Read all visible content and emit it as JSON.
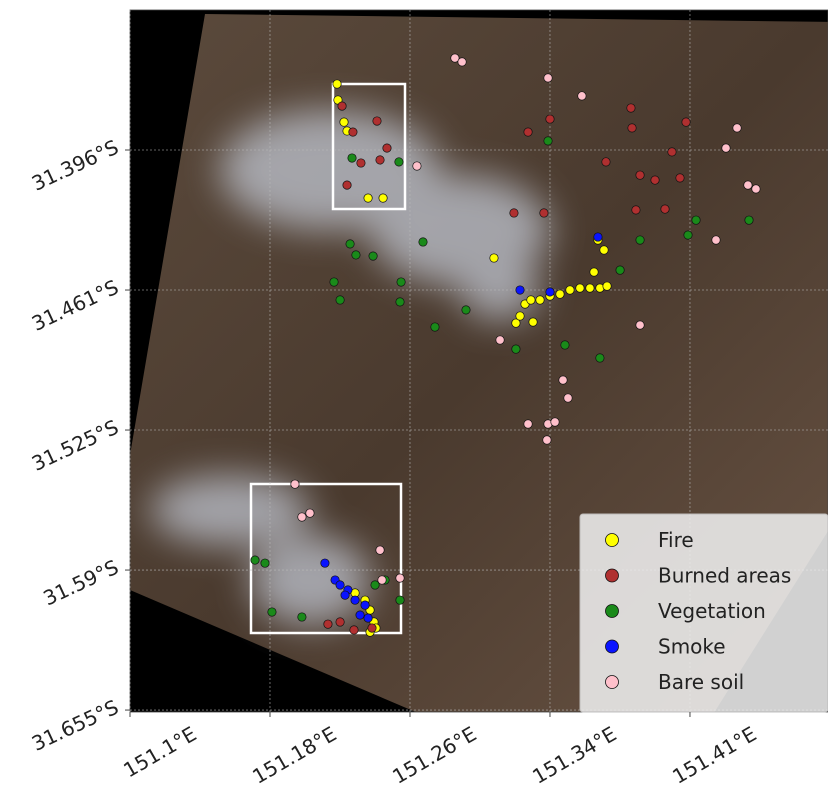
{
  "chart_data": {
    "type": "scatter",
    "xlim": [
      151.1,
      151.4914
    ],
    "ylim": [
      -31.6557,
      -31.3313
    ],
    "xticks": [
      {
        "value": 151.1,
        "label": "151.1°E"
      },
      {
        "value": 151.1785,
        "label": "151.18°E"
      },
      {
        "value": 151.257,
        "label": "151.26°E"
      },
      {
        "value": 151.3355,
        "label": "151.34°E"
      },
      {
        "value": 151.414,
        "label": "151.41°E"
      }
    ],
    "yticks": [
      {
        "value": -31.396,
        "label": "31.396°S"
      },
      {
        "value": -31.4607,
        "label": "31.461°S"
      },
      {
        "value": -31.5254,
        "label": "31.525°S"
      },
      {
        "value": -31.5901,
        "label": "31.59°S"
      },
      {
        "value": -31.6548,
        "label": "31.655°S"
      }
    ],
    "grid": true,
    "legend": "lower right",
    "series": [
      {
        "name": "Fire",
        "color": "#ffff00",
        "x": [
          151.2161,
          151.2166,
          151.22,
          151.2217,
          151.2335,
          151.2419,
          151.3041,
          151.3164,
          151.3187,
          151.3215,
          151.3248,
          151.3299,
          151.3355,
          151.3411,
          151.3467,
          151.3523,
          151.3579,
          151.3635,
          151.3675,
          151.3624,
          151.3658,
          151.3602,
          151.326,
          151.2262,
          151.2318,
          151.2346,
          151.2368,
          151.2379,
          151.2346
        ],
        "values": [
          -31.3655,
          -31.3729,
          -31.3831,
          -31.3872,
          -31.4182,
          -31.4182,
          -31.4459,
          -31.476,
          -31.4727,
          -31.4672,
          -31.4653,
          -31.4653,
          -31.4635,
          -31.4626,
          -31.4607,
          -31.4598,
          -31.4598,
          -31.4598,
          -31.4589,
          -31.4376,
          -31.4422,
          -31.4524,
          -31.4755,
          -31.6007,
          -31.604,
          -31.6086,
          -31.6141,
          -31.6169,
          -31.6188
        ]
      },
      {
        "name": "Burned areas",
        "color": "#b03030",
        "x": [
          151.2189,
          151.225,
          151.2385,
          151.2402,
          151.2441,
          151.2217,
          151.2295,
          151.3232,
          151.3355,
          151.3669,
          151.3809,
          151.3815,
          151.386,
          151.3944,
          151.4039,
          151.4084,
          151.4118,
          151.3837,
          151.3153,
          151.3321,
          151.4,
          151.211,
          151.2178,
          151.2256,
          151.2357
        ],
        "values": [
          -31.3757,
          -31.3877,
          -31.3826,
          -31.4006,
          -31.3951,
          -31.4122,
          -31.402,
          -31.3877,
          -31.3817,
          -31.4015,
          -31.3766,
          -31.3858,
          -31.4076,
          -31.4099,
          -31.3969,
          -31.4089,
          -31.3831,
          -31.4237,
          -31.4251,
          -31.4251,
          -31.4233,
          -31.6151,
          -31.6141,
          -31.6178,
          -31.6169
        ]
      },
      {
        "name": "Vegetation",
        "color": "#1a8a1a",
        "x": [
          151.2245,
          151.2508,
          151.3344,
          151.4174,
          151.4471,
          151.2234,
          151.2267,
          151.2363,
          151.2144,
          151.2178,
          151.252,
          151.2514,
          151.2643,
          151.271,
          151.2884,
          151.3164,
          151.3439,
          151.3635,
          151.386,
          151.3748,
          151.4129,
          151.1701,
          151.1757,
          151.1796,
          151.1964,
          151.2374,
          151.243,
          151.2514
        ],
        "values": [
          -31.3997,
          -31.4015,
          -31.3918,
          -31.4284,
          -31.4284,
          -31.4394,
          -31.4445,
          -31.445,
          -31.457,
          -31.4653,
          -31.457,
          -31.4662,
          -31.4385,
          -31.4778,
          -31.4699,
          -31.488,
          -31.4861,
          -31.4921,
          -31.4376,
          -31.4515,
          -31.4353,
          -31.5855,
          -31.5869,
          -31.6095,
          -31.6118,
          -31.597,
          -31.5947,
          -31.604
        ]
      },
      {
        "name": "Smoke",
        "color": "#0a14ff",
        "x": [
          151.3624,
          151.2093,
          151.215,
          151.2178,
          151.2222,
          151.2262,
          151.2206,
          151.2318,
          151.229,
          151.2335,
          151.3187,
          151.3355
        ],
        "values": [
          -31.4362,
          -31.5869,
          -31.5947,
          -31.597,
          -31.5993,
          -31.604,
          -31.6017,
          -31.6063,
          -31.6109,
          -31.6123,
          -31.4607,
          -31.4616
        ]
      },
      {
        "name": "Bare soil",
        "color": "#ffc0cb",
        "x": [
          151.2822,
          151.2862,
          151.3344,
          151.3534,
          151.4404,
          151.4342,
          151.4465,
          151.451,
          151.4286,
          151.2609,
          151.386,
          151.3428,
          151.3456,
          151.3232,
          151.3344,
          151.3383,
          151.3338,
          151.3075,
          151.2009,
          151.1964,
          151.2402,
          151.2413,
          151.2514,
          151.1925
        ],
        "values": [
          -31.3535,
          -31.3553,
          -31.3627,
          -31.371,
          -31.3858,
          -31.3951,
          -31.4122,
          -31.414,
          -31.4376,
          -31.4034,
          -31.4769,
          -31.5023,
          -31.5106,
          -31.5226,
          -31.5226,
          -31.5217,
          -31.53,
          -31.4838,
          -31.5638,
          -31.5656,
          -31.5809,
          -31.5947,
          -31.5938,
          -31.5504
        ]
      }
    ]
  }
}
